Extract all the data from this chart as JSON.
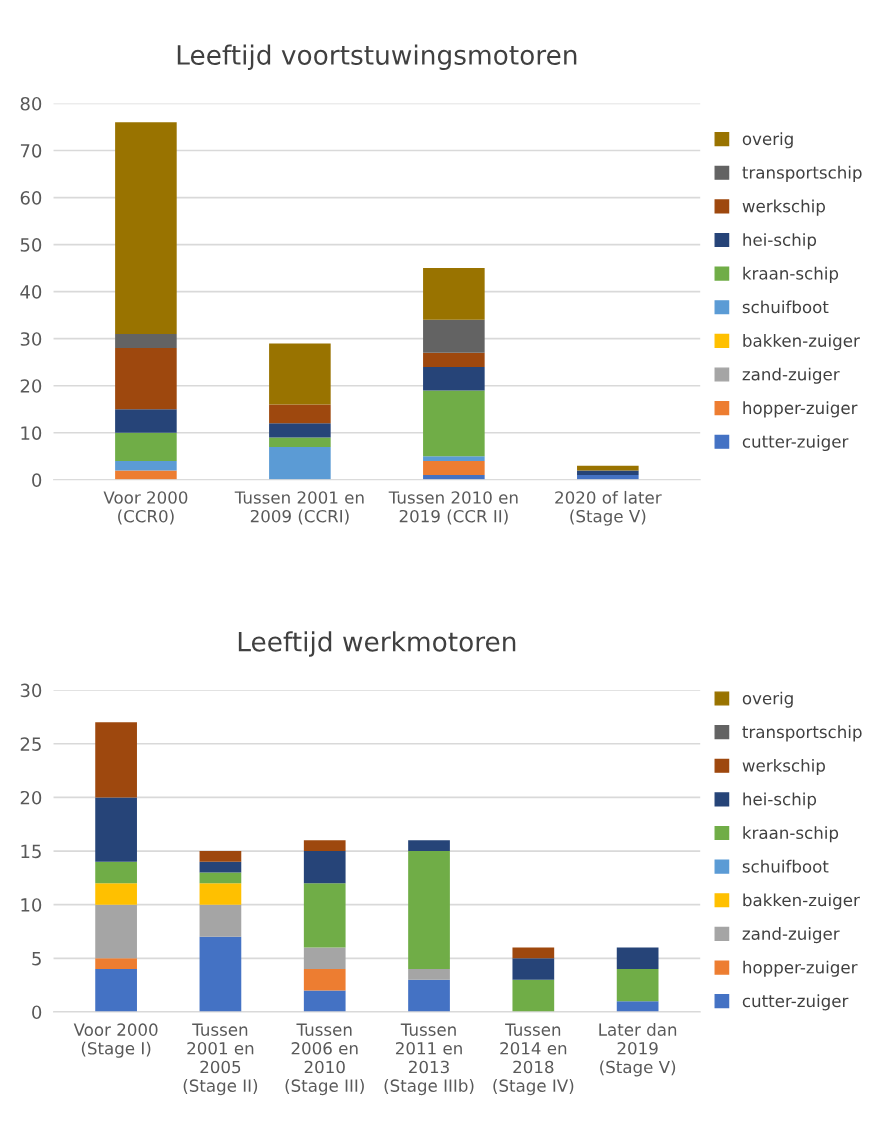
{
  "chart_data": [
    {
      "type": "bar",
      "stacked": true,
      "title": "Leeftijd voortstuwingsmotoren",
      "categories": [
        "Voor 2000\n(CCR0)",
        "Tussen 2001 en\n2009 (CCRI)",
        "Tussen 2010 en\n2019 (CCR II)",
        "2020 of later\n(Stage V)"
      ],
      "ylim": [
        0,
        80
      ],
      "yticks": [
        0,
        10,
        20,
        30,
        40,
        50,
        60,
        70,
        80
      ],
      "grid": "y",
      "legend": "right",
      "series": [
        {
          "name": "cutter-zuiger",
          "color": "#4472c4",
          "values": [
            0,
            0,
            1,
            1
          ]
        },
        {
          "name": "hopper-zuiger",
          "color": "#ed7d31",
          "values": [
            2,
            0,
            3,
            0
          ]
        },
        {
          "name": "zand-zuiger",
          "color": "#a5a5a5",
          "values": [
            0,
            0,
            0,
            0
          ]
        },
        {
          "name": "bakken-zuiger",
          "color": "#ffc000",
          "values": [
            0,
            0,
            0,
            0
          ]
        },
        {
          "name": "schuifboot",
          "color": "#5b9bd5",
          "values": [
            2,
            7,
            1,
            0
          ]
        },
        {
          "name": "kraan-schip",
          "color": "#70ad47",
          "values": [
            6,
            2,
            14,
            0
          ]
        },
        {
          "name": "hei-schip",
          "color": "#264478",
          "values": [
            5,
            3,
            5,
            1
          ]
        },
        {
          "name": "werkschip",
          "color": "#9e480e",
          "values": [
            13,
            4,
            3,
            0
          ]
        },
        {
          "name": "transportschip",
          "color": "#636363",
          "values": [
            3,
            0,
            7,
            0
          ]
        },
        {
          "name": "overig",
          "color": "#997300",
          "values": [
            45,
            13,
            11,
            1
          ]
        }
      ]
    },
    {
      "type": "bar",
      "stacked": true,
      "title": "Leeftijd werkmotoren",
      "categories": [
        "Voor 2000\n(Stage I)",
        "Tussen\n2001 en\n2005\n(Stage II)",
        "Tussen\n2006 en\n2010\n(Stage III)",
        "Tussen\n2011 en\n2013\n(Stage IIIb)",
        "Tussen\n2014 en\n2018\n(Stage IV)",
        "Later dan\n2019\n(Stage V)"
      ],
      "ylim": [
        0,
        30
      ],
      "yticks": [
        0,
        5,
        10,
        15,
        20,
        25,
        30
      ],
      "grid": "y",
      "legend": "right",
      "series": [
        {
          "name": "cutter-zuiger",
          "color": "#4472c4",
          "values": [
            4,
            7,
            2,
            3,
            0,
            1
          ]
        },
        {
          "name": "hopper-zuiger",
          "color": "#ed7d31",
          "values": [
            1,
            0,
            2,
            0,
            0,
            0
          ]
        },
        {
          "name": "zand-zuiger",
          "color": "#a5a5a5",
          "values": [
            5,
            3,
            2,
            1,
            0,
            0
          ]
        },
        {
          "name": "bakken-zuiger",
          "color": "#ffc000",
          "values": [
            2,
            2,
            0,
            0,
            0,
            0
          ]
        },
        {
          "name": "schuifboot",
          "color": "#5b9bd5",
          "values": [
            0,
            0,
            0,
            0,
            0,
            0
          ]
        },
        {
          "name": "kraan-schip",
          "color": "#70ad47",
          "values": [
            2,
            1,
            6,
            11,
            3,
            3
          ]
        },
        {
          "name": "hei-schip",
          "color": "#264478",
          "values": [
            6,
            1,
            3,
            1,
            2,
            2
          ]
        },
        {
          "name": "werkschip",
          "color": "#9e480e",
          "values": [
            7,
            1,
            1,
            0,
            1,
            0
          ]
        },
        {
          "name": "transportschip",
          "color": "#636363",
          "values": [
            0,
            0,
            0,
            0,
            0,
            0
          ]
        },
        {
          "name": "overig",
          "color": "#997300",
          "values": [
            0,
            0,
            0,
            0,
            0,
            0
          ]
        }
      ]
    }
  ]
}
